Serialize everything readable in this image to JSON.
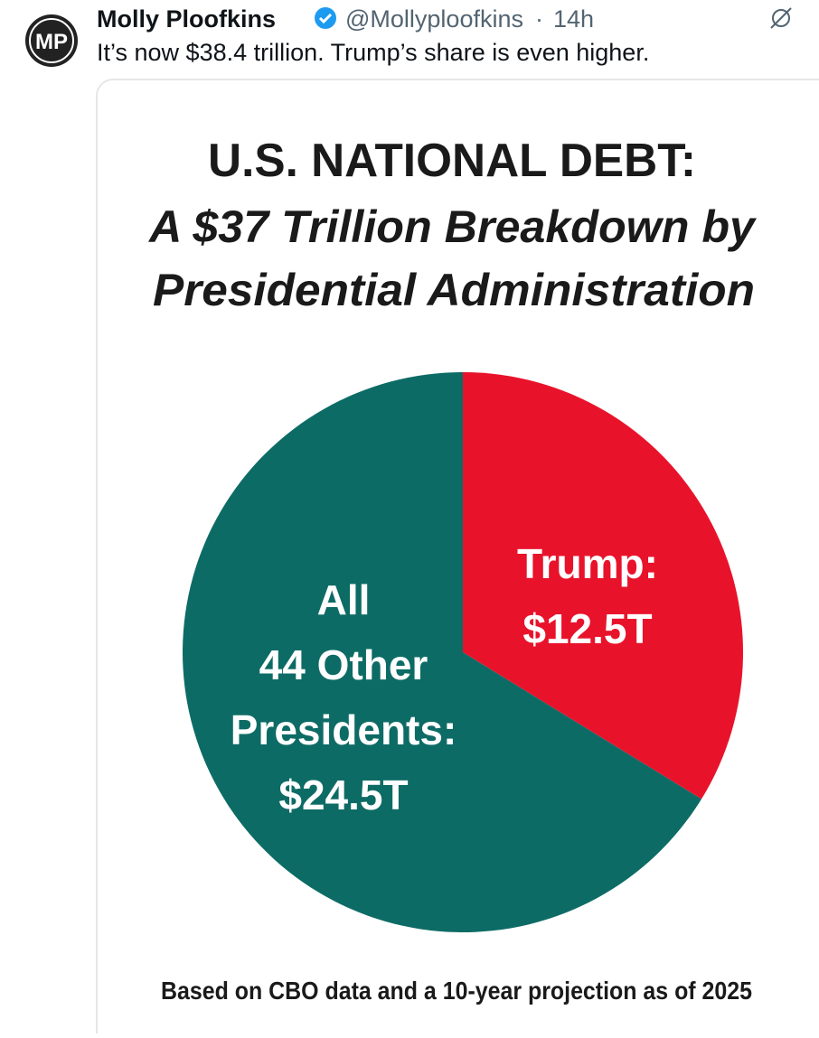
{
  "tweet": {
    "avatar_text": "MP",
    "name": "Molly Ploofkins",
    "handle": "@Mollyploofkins",
    "separator": "·",
    "time": "14h",
    "text": "It’s now $38.4 trillion. Trump’s share is even higher."
  },
  "chart_data": {
    "type": "pie",
    "title": "U.S. NATIONAL DEBT:",
    "subtitle": [
      "A $37 Trillion Breakdown by",
      "Presidential Administration"
    ],
    "categories": [
      [
        "Trump:"
      ],
      [
        "All",
        "44 Other",
        "Presidents:"
      ]
    ],
    "values": [
      12.5,
      24.5
    ],
    "value_labels": [
      "$12.5T",
      "$24.5T"
    ],
    "colors": [
      "#e8132b",
      "#0d6b65"
    ],
    "note": "Based on CBO data and a 10-year projection as of 2025"
  }
}
